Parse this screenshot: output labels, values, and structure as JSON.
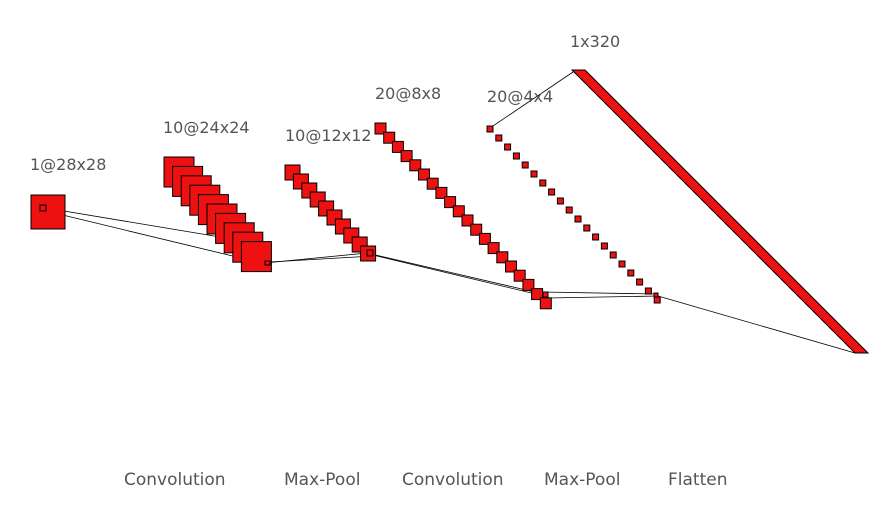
{
  "diagram": {
    "layers": [
      {
        "label": "1@28x28",
        "channels": 1
      },
      {
        "label": "10@24x24",
        "channels": 10
      },
      {
        "label": "10@12x12",
        "channels": 10
      },
      {
        "label": "20@8x8",
        "channels": 20
      },
      {
        "label": "20@4x4",
        "channels": 20
      },
      {
        "label": "1x320",
        "channels": 1
      }
    ],
    "operations": [
      "Convolution",
      "Max-Pool",
      "Convolution",
      "Max-Pool",
      "Flatten"
    ],
    "colors": {
      "fill": "#ee1111",
      "stroke": "#000000",
      "text": "#555555"
    }
  }
}
